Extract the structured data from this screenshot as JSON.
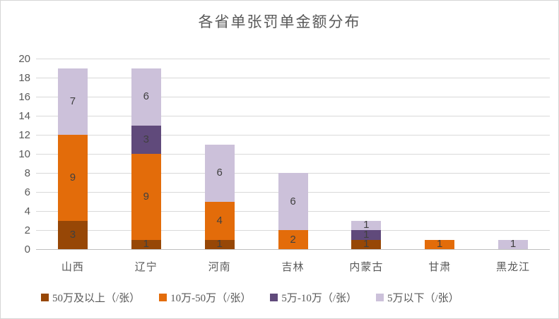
{
  "chart": {
    "title": "各省单张罚单金额分布"
  },
  "chart_data": {
    "type": "bar",
    "stacked": true,
    "title": "各省单张罚单金额分布",
    "categories": [
      "山西",
      "辽宁",
      "河南",
      "吉林",
      "内蒙古",
      "甘肃",
      "黑龙江"
    ],
    "series": [
      {
        "name": "50万及以上（/张）",
        "color": "#974706",
        "values": [
          3,
          1,
          1,
          0,
          1,
          0,
          0
        ]
      },
      {
        "name": "10万-50万（/张）",
        "color": "#E36C0A",
        "values": [
          9,
          9,
          4,
          2,
          0,
          1,
          0
        ]
      },
      {
        "name": "5万-10万（/张）",
        "color": "#604A7B",
        "values": [
          0,
          3,
          0,
          0,
          1,
          0,
          0
        ]
      },
      {
        "name": "5万以下（/张）",
        "color": "#CCC1DA",
        "values": [
          7,
          6,
          6,
          6,
          1,
          0,
          1
        ]
      }
    ],
    "totals": [
      19,
      19,
      11,
      8,
      3,
      1,
      1
    ],
    "xlabel": "",
    "ylabel": "",
    "ylim": [
      0,
      20
    ],
    "ytick_step": 2,
    "grid": true,
    "legend_position": "bottom",
    "colors": {
      "background": "#FFFFFF",
      "border": "#D6D6D6",
      "gridline": "#D9D9D9",
      "axis_line": "#BFBFBF",
      "axis_text": "#595959",
      "title_text": "#595959",
      "data_label": "#404040"
    }
  }
}
